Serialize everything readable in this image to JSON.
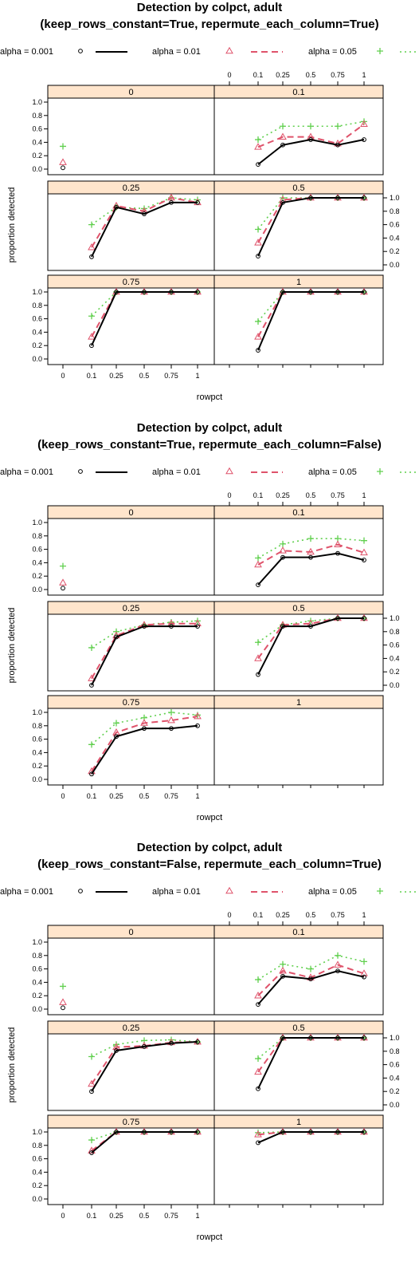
{
  "chart_data": [
    {
      "type": "line",
      "title": "Detection by colpct, adult",
      "subtitle": "(keep_rows_constant=True, repermute_each_column=True)",
      "xlabel": "rowpct",
      "ylabel": "proportion detected",
      "x": [
        "0",
        "0.1",
        "0.25",
        "0.5",
        "0.75",
        "1"
      ],
      "y_ticks": [
        "0.0",
        "0.2",
        "0.4",
        "0.6",
        "0.8",
        "1.0"
      ],
      "ylim": [
        0,
        1
      ],
      "legend": [
        "alpha = 0.001",
        "alpha = 0.01",
        "alpha = 0.05"
      ],
      "panels": [
        {
          "label": "0",
          "series": [
            {
              "name": "alpha = 0.001",
              "values": [
                0.02,
                null,
                null,
                null,
                null,
                null
              ]
            },
            {
              "name": "alpha = 0.01",
              "values": [
                0.1,
                null,
                null,
                null,
                null,
                null
              ]
            },
            {
              "name": "alpha = 0.05",
              "values": [
                0.34,
                null,
                null,
                null,
                null,
                null
              ]
            }
          ]
        },
        {
          "label": "0.1",
          "series": [
            {
              "name": "alpha = 0.001",
              "values": [
                null,
                0.07,
                0.36,
                0.44,
                0.36,
                0.44
              ]
            },
            {
              "name": "alpha = 0.01",
              "values": [
                null,
                0.33,
                0.48,
                0.48,
                0.38,
                0.67
              ]
            },
            {
              "name": "alpha = 0.05",
              "values": [
                null,
                0.44,
                0.64,
                0.64,
                0.64,
                0.71
              ]
            }
          ]
        },
        {
          "label": "0.25",
          "series": [
            {
              "name": "alpha = 0.001",
              "values": [
                null,
                0.12,
                0.86,
                0.76,
                0.93,
                0.93
              ]
            },
            {
              "name": "alpha = 0.01",
              "values": [
                null,
                0.26,
                0.88,
                0.8,
                1.0,
                0.93
              ]
            },
            {
              "name": "alpha = 0.05",
              "values": [
                null,
                0.6,
                0.86,
                0.84,
                1.0,
                0.97
              ]
            }
          ]
        },
        {
          "label": "0.5",
          "series": [
            {
              "name": "alpha = 0.001",
              "values": [
                null,
                0.13,
                0.93,
                1.0,
                1.0,
                1.0
              ]
            },
            {
              "name": "alpha = 0.01",
              "values": [
                null,
                0.33,
                0.97,
                1.0,
                1.0,
                1.0
              ]
            },
            {
              "name": "alpha = 0.05",
              "values": [
                null,
                0.53,
                1.0,
                1.0,
                1.0,
                1.0
              ]
            }
          ]
        },
        {
          "label": "0.75",
          "series": [
            {
              "name": "alpha = 0.001",
              "values": [
                null,
                0.2,
                1.0,
                1.0,
                1.0,
                1.0
              ]
            },
            {
              "name": "alpha = 0.01",
              "values": [
                null,
                0.33,
                1.0,
                1.0,
                1.0,
                1.0
              ]
            },
            {
              "name": "alpha = 0.05",
              "values": [
                null,
                0.64,
                1.0,
                1.0,
                1.0,
                1.0
              ]
            }
          ]
        },
        {
          "label": "1",
          "series": [
            {
              "name": "alpha = 0.001",
              "values": [
                null,
                0.13,
                1.0,
                1.0,
                1.0,
                1.0
              ]
            },
            {
              "name": "alpha = 0.01",
              "values": [
                null,
                0.33,
                1.0,
                1.0,
                1.0,
                1.0
              ]
            },
            {
              "name": "alpha = 0.05",
              "values": [
                null,
                0.56,
                1.0,
                1.0,
                1.0,
                1.0
              ]
            }
          ]
        }
      ]
    },
    {
      "type": "line",
      "title": "Detection by colpct, adult",
      "subtitle": "(keep_rows_constant=True, repermute_each_column=False)",
      "xlabel": "rowpct",
      "ylabel": "proportion detected",
      "x": [
        "0",
        "0.1",
        "0.25",
        "0.5",
        "0.75",
        "1"
      ],
      "y_ticks": [
        "0.0",
        "0.2",
        "0.4",
        "0.6",
        "0.8",
        "1.0"
      ],
      "ylim": [
        0,
        1
      ],
      "legend": [
        "alpha = 0.001",
        "alpha = 0.01",
        "alpha = 0.05"
      ],
      "panels": [
        {
          "label": "0",
          "series": [
            {
              "name": "alpha = 0.001",
              "values": [
                0.02,
                null,
                null,
                null,
                null,
                null
              ]
            },
            {
              "name": "alpha = 0.01",
              "values": [
                0.1,
                null,
                null,
                null,
                null,
                null
              ]
            },
            {
              "name": "alpha = 0.05",
              "values": [
                0.35,
                null,
                null,
                null,
                null,
                null
              ]
            }
          ]
        },
        {
          "label": "0.1",
          "series": [
            {
              "name": "alpha = 0.001",
              "values": [
                null,
                0.07,
                0.48,
                0.48,
                0.54,
                0.44
              ]
            },
            {
              "name": "alpha = 0.01",
              "values": [
                null,
                0.37,
                0.58,
                0.56,
                0.67,
                0.55
              ]
            },
            {
              "name": "alpha = 0.05",
              "values": [
                null,
                0.47,
                0.68,
                0.76,
                0.76,
                0.73
              ]
            }
          ]
        },
        {
          "label": "0.25",
          "series": [
            {
              "name": "alpha = 0.001",
              "values": [
                null,
                0.0,
                0.72,
                0.88,
                0.88,
                0.88
              ]
            },
            {
              "name": "alpha = 0.01",
              "values": [
                null,
                0.1,
                0.74,
                0.9,
                0.92,
                0.92
              ]
            },
            {
              "name": "alpha = 0.05",
              "values": [
                null,
                0.56,
                0.8,
                0.9,
                0.94,
                0.96
              ]
            }
          ]
        },
        {
          "label": "0.5",
          "series": [
            {
              "name": "alpha = 0.001",
              "values": [
                null,
                0.16,
                0.88,
                0.88,
                1.0,
                1.0
              ]
            },
            {
              "name": "alpha = 0.01",
              "values": [
                null,
                0.4,
                0.9,
                0.92,
                1.0,
                1.0
              ]
            },
            {
              "name": "alpha = 0.05",
              "values": [
                null,
                0.64,
                0.9,
                0.96,
                1.0,
                1.0
              ]
            }
          ]
        },
        {
          "label": "0.75",
          "series": [
            {
              "name": "alpha = 0.001",
              "values": [
                null,
                0.08,
                0.64,
                0.76,
                0.76,
                0.8
              ]
            },
            {
              "name": "alpha = 0.01",
              "values": [
                null,
                0.12,
                0.7,
                0.84,
                0.88,
                0.94
              ]
            },
            {
              "name": "alpha = 0.05",
              "values": [
                null,
                0.52,
                0.84,
                0.92,
                1.0,
                0.96
              ]
            }
          ]
        },
        {
          "label": "1",
          "series": [
            {
              "name": "alpha = 0.001",
              "values": [
                null,
                null,
                null,
                null,
                null,
                null
              ]
            },
            {
              "name": "alpha = 0.01",
              "values": [
                null,
                null,
                null,
                null,
                null,
                null
              ]
            },
            {
              "name": "alpha = 0.05",
              "values": [
                null,
                null,
                null,
                null,
                null,
                null
              ]
            }
          ]
        }
      ]
    },
    {
      "type": "line",
      "title": "Detection by colpct, adult",
      "subtitle": "(keep_rows_constant=False, repermute_each_column=True)",
      "xlabel": "rowpct",
      "ylabel": "proportion detected",
      "x": [
        "0",
        "0.1",
        "0.25",
        "0.5",
        "0.75",
        "1"
      ],
      "y_ticks": [
        "0.0",
        "0.2",
        "0.4",
        "0.6",
        "0.8",
        "1.0"
      ],
      "ylim": [
        0,
        1
      ],
      "legend": [
        "alpha = 0.001",
        "alpha = 0.01",
        "alpha = 0.05"
      ],
      "panels": [
        {
          "label": "0",
          "series": [
            {
              "name": "alpha = 0.001",
              "values": [
                0.02,
                null,
                null,
                null,
                null,
                null
              ]
            },
            {
              "name": "alpha = 0.01",
              "values": [
                0.1,
                null,
                null,
                null,
                null,
                null
              ]
            },
            {
              "name": "alpha = 0.05",
              "values": [
                0.34,
                null,
                null,
                null,
                null,
                null
              ]
            }
          ]
        },
        {
          "label": "0.1",
          "series": [
            {
              "name": "alpha = 0.001",
              "values": [
                null,
                0.07,
                0.49,
                0.45,
                0.57,
                0.48
              ]
            },
            {
              "name": "alpha = 0.01",
              "values": [
                null,
                0.2,
                0.57,
                0.47,
                0.66,
                0.53
              ]
            },
            {
              "name": "alpha = 0.05",
              "values": [
                null,
                0.44,
                0.67,
                0.6,
                0.8,
                0.71
              ]
            }
          ]
        },
        {
          "label": "0.25",
          "series": [
            {
              "name": "alpha = 0.001",
              "values": [
                null,
                0.2,
                0.81,
                0.87,
                0.92,
                0.94
              ]
            },
            {
              "name": "alpha = 0.01",
              "values": [
                null,
                0.31,
                0.86,
                0.88,
                0.93,
                0.94
              ]
            },
            {
              "name": "alpha = 0.05",
              "values": [
                null,
                0.72,
                0.9,
                0.96,
                0.97,
                0.94
              ]
            }
          ]
        },
        {
          "label": "0.5",
          "series": [
            {
              "name": "alpha = 0.001",
              "values": [
                null,
                0.24,
                1.0,
                1.0,
                1.0,
                1.0
              ]
            },
            {
              "name": "alpha = 0.01",
              "values": [
                null,
                0.49,
                1.0,
                1.0,
                1.0,
                1.0
              ]
            },
            {
              "name": "alpha = 0.05",
              "values": [
                null,
                0.69,
                1.0,
                1.0,
                1.0,
                1.0
              ]
            }
          ]
        },
        {
          "label": "0.75",
          "series": [
            {
              "name": "alpha = 0.001",
              "values": [
                null,
                0.69,
                1.0,
                1.0,
                1.0,
                1.0
              ]
            },
            {
              "name": "alpha = 0.01",
              "values": [
                null,
                0.72,
                1.0,
                1.0,
                1.0,
                1.0
              ]
            },
            {
              "name": "alpha = 0.05",
              "values": [
                null,
                0.88,
                1.0,
                1.0,
                1.0,
                1.0
              ]
            }
          ]
        },
        {
          "label": "1",
          "series": [
            {
              "name": "alpha = 0.001",
              "values": [
                null,
                0.84,
                1.0,
                1.0,
                1.0,
                1.0
              ]
            },
            {
              "name": "alpha = 0.01",
              "values": [
                null,
                0.96,
                1.0,
                1.0,
                1.0,
                1.0
              ]
            },
            {
              "name": "alpha = 0.05",
              "values": [
                null,
                0.99,
                1.0,
                1.0,
                1.0,
                1.0
              ]
            }
          ]
        }
      ]
    }
  ],
  "colors": {
    "alpha_001": "#000000",
    "alpha_01": "#df536b",
    "alpha_05": "#61d04f",
    "strip": "#ffe5cc"
  }
}
